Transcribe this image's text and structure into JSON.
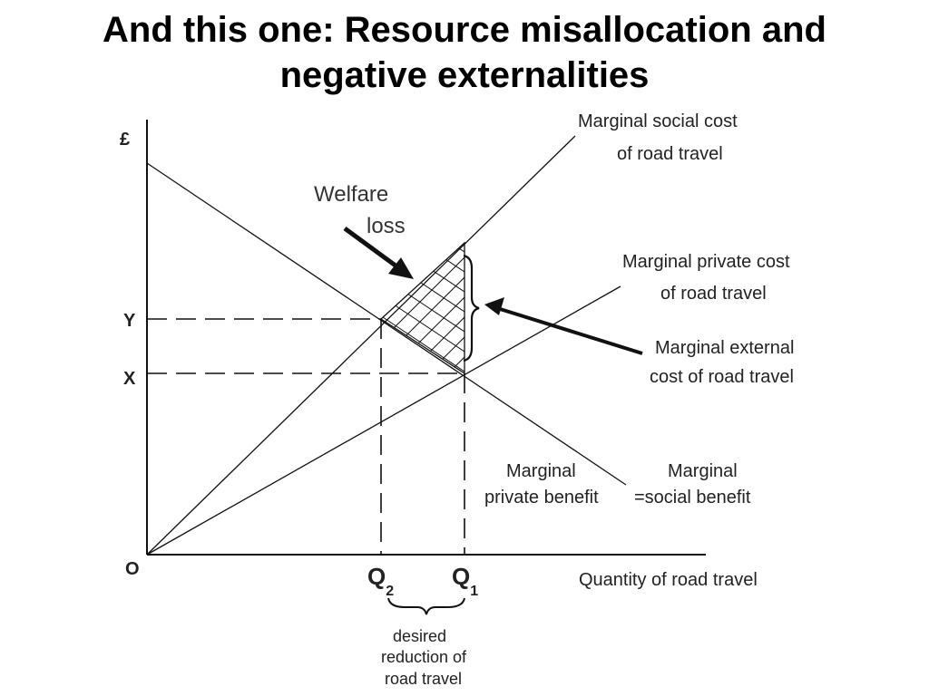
{
  "slide": {
    "title_line1": "And this one: Resource misallocation and",
    "title_line2": "negative externalities"
  },
  "diagram": {
    "y_axis_label": "£",
    "origin_label": "O",
    "y_tick_Y": "Y",
    "y_tick_X": "X",
    "q2_main": "Q",
    "q2_sub": "2",
    "q1_main": "Q",
    "q1_sub": "1",
    "x_axis_label": "Quantity of road travel",
    "msc_label_line1": "Marginal social cost",
    "msc_label_line2": "of  road travel",
    "mpc_label_line1": "Marginal private cost",
    "mpc_label_line2": "of road travel",
    "mec_label_line1": "Marginal external",
    "mec_label_line2": "cost of road travel",
    "welfare_line1": "Welfare",
    "welfare_line2": "loss",
    "mpb_line1": "Marginal",
    "mpb_line2": "private benefit",
    "msb_line1": "Marginal",
    "msb_line2": "=social benefit",
    "reduction_line1": "desired",
    "reduction_line2": "reduction of",
    "reduction_line3": "road travel"
  },
  "colors": {
    "line": "#111111",
    "text": "#222222"
  }
}
